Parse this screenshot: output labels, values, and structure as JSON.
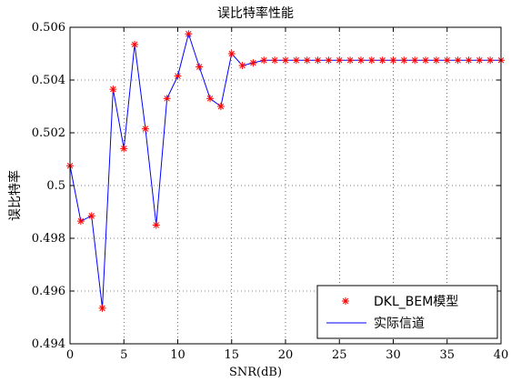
{
  "chart_data": {
    "type": "line",
    "title": "误比特率性能",
    "xlabel": "SNR(dB)",
    "ylabel": "误比特率",
    "xlim": [
      0,
      40
    ],
    "ylim": [
      0.494,
      0.506
    ],
    "xticks": [
      0,
      5,
      10,
      15,
      20,
      25,
      30,
      35,
      40
    ],
    "yticks": [
      0.494,
      0.496,
      0.498,
      0.5,
      0.502,
      0.504,
      0.506
    ],
    "xtick_labels": [
      "0",
      "5",
      "10",
      "15",
      "20",
      "25",
      "30",
      "35",
      "40"
    ],
    "ytick_labels": [
      "0.494",
      "0.496",
      "0.498",
      "0.5",
      "0.502",
      "0.504",
      "0.506"
    ],
    "grid": true,
    "legend_position": "bottom-right",
    "x": [
      0,
      1,
      2,
      3,
      4,
      5,
      6,
      7,
      8,
      9,
      10,
      11,
      12,
      13,
      14,
      15,
      16,
      17,
      18,
      19,
      20,
      21,
      22,
      23,
      24,
      25,
      26,
      27,
      28,
      29,
      30,
      31,
      32,
      33,
      34,
      35,
      36,
      37,
      38,
      39,
      40
    ],
    "series": [
      {
        "name": "DKL_BEM模型",
        "marker": "*",
        "color": "#ff0000",
        "values": [
          0.50075,
          0.49865,
          0.49885,
          0.49535,
          0.50365,
          0.5014,
          0.50535,
          0.50215,
          0.4985,
          0.5033,
          0.50415,
          0.50575,
          0.5045,
          0.5033,
          0.503,
          0.505,
          0.50455,
          0.50465,
          0.50475,
          0.50475,
          0.50475,
          0.50475,
          0.50475,
          0.50475,
          0.50475,
          0.50475,
          0.50475,
          0.50475,
          0.50475,
          0.50475,
          0.50475,
          0.50475,
          0.50475,
          0.50475,
          0.50475,
          0.50475,
          0.50475,
          0.50475,
          0.50475,
          0.50475,
          0.50475
        ]
      },
      {
        "name": "实际信道",
        "marker": "line",
        "color": "#0000ff",
        "values": [
          0.50075,
          0.49865,
          0.49885,
          0.49535,
          0.50365,
          0.5014,
          0.50535,
          0.50215,
          0.4985,
          0.5033,
          0.50415,
          0.50575,
          0.5045,
          0.5033,
          0.503,
          0.505,
          0.50455,
          0.50465,
          0.50475,
          0.50475,
          0.50475,
          0.50475,
          0.50475,
          0.50475,
          0.50475,
          0.50475,
          0.50475,
          0.50475,
          0.50475,
          0.50475,
          0.50475,
          0.50475,
          0.50475,
          0.50475,
          0.50475,
          0.50475,
          0.50475,
          0.50475,
          0.50475,
          0.50475,
          0.50475
        ]
      }
    ]
  }
}
